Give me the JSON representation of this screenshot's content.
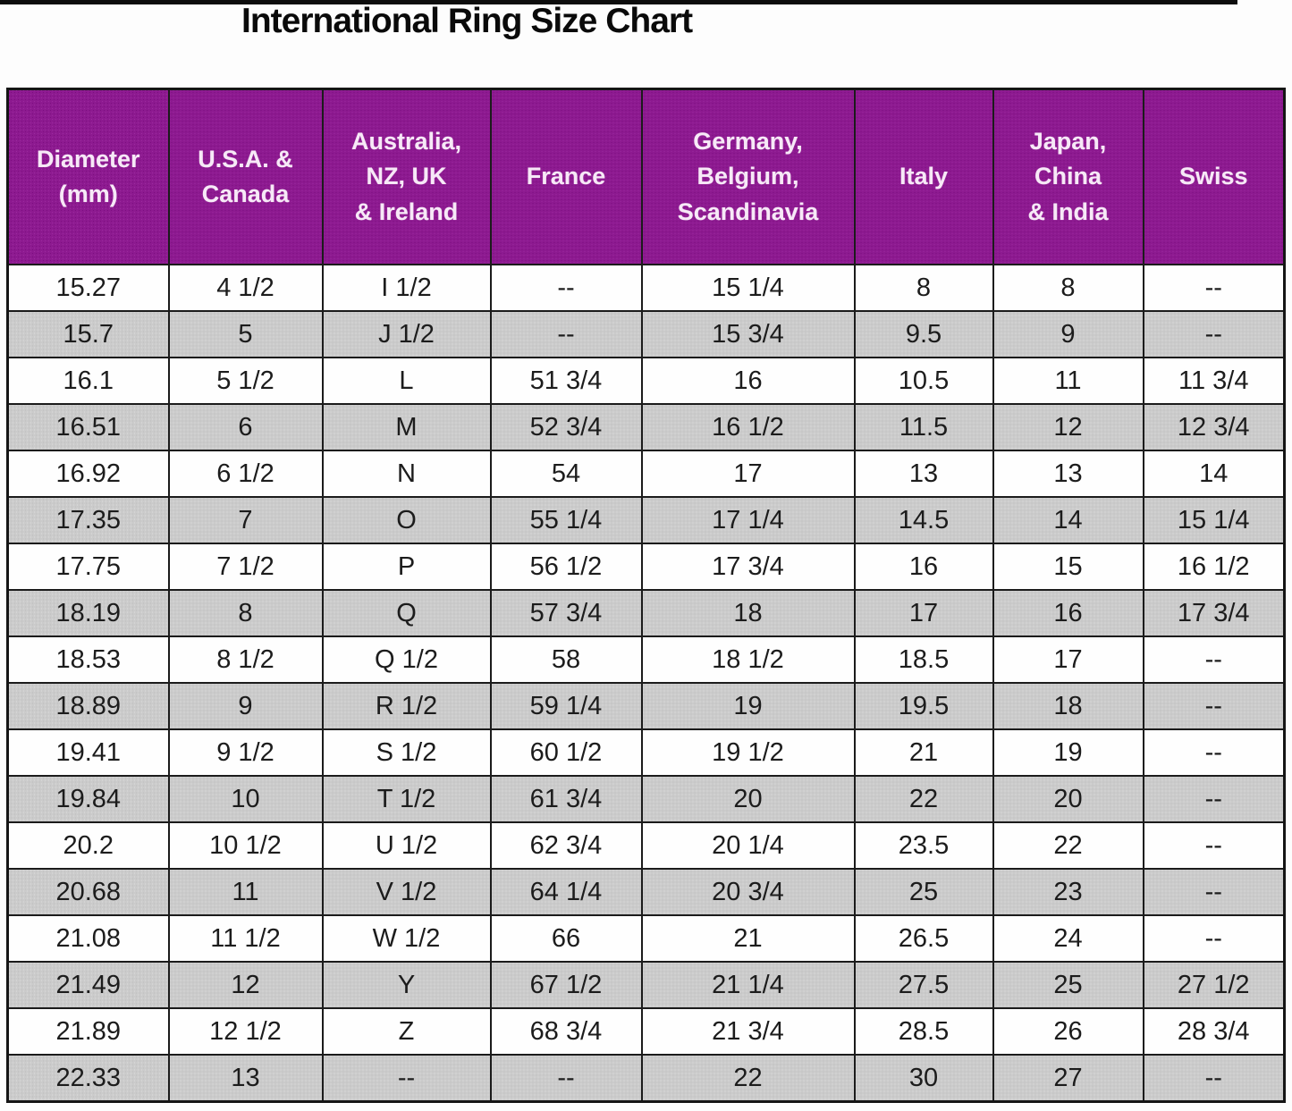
{
  "title": "International Ring Size Chart",
  "colors": {
    "header_bg": "#8d1a90",
    "header_text": "#f7e9f7",
    "alt_row_bg": "#cbcbcb",
    "row_bg": "#fefefe",
    "border": "#1b1b1b",
    "title_text": "#0a0a0a"
  },
  "table": {
    "headers": [
      "Diameter\n(mm)",
      "U.S.A. &\nCanada",
      "Australia,\nNZ, UK\n& Ireland",
      "France",
      "Germany,\nBelgium,\nScandinavia",
      "Italy",
      "Japan,\nChina\n& India",
      "Swiss"
    ]
  },
  "chart_data": {
    "type": "table",
    "title": "International Ring Size Chart",
    "columns": [
      "Diameter (mm)",
      "U.S.A. & Canada",
      "Australia, NZ, UK & Ireland",
      "France",
      "Germany, Belgium, Scandinavia",
      "Italy",
      "Japan, China & India",
      "Swiss"
    ],
    "rows": [
      [
        "15.27",
        "4 1/2",
        "I 1/2",
        "--",
        "15 1/4",
        "8",
        "8",
        "--"
      ],
      [
        "15.7",
        "5",
        "J 1/2",
        "--",
        "15 3/4",
        "9.5",
        "9",
        "--"
      ],
      [
        "16.1",
        "5 1/2",
        "L",
        "51 3/4",
        "16",
        "10.5",
        "11",
        "11 3/4"
      ],
      [
        "16.51",
        "6",
        "M",
        "52 3/4",
        "16 1/2",
        "11.5",
        "12",
        "12 3/4"
      ],
      [
        "16.92",
        "6 1/2",
        "N",
        "54",
        "17",
        "13",
        "13",
        "14"
      ],
      [
        "17.35",
        "7",
        "O",
        "55 1/4",
        "17 1/4",
        "14.5",
        "14",
        "15 1/4"
      ],
      [
        "17.75",
        "7 1/2",
        "P",
        "56 1/2",
        "17 3/4",
        "16",
        "15",
        "16 1/2"
      ],
      [
        "18.19",
        "8",
        "Q",
        "57 3/4",
        "18",
        "17",
        "16",
        "17 3/4"
      ],
      [
        "18.53",
        "8 1/2",
        "Q 1/2",
        "58",
        "18 1/2",
        "18.5",
        "17",
        "--"
      ],
      [
        "18.89",
        "9",
        "R 1/2",
        "59 1/4",
        "19",
        "19.5",
        "18",
        "--"
      ],
      [
        "19.41",
        "9 1/2",
        "S 1/2",
        "60 1/2",
        "19 1/2",
        "21",
        "19",
        "--"
      ],
      [
        "19.84",
        "10",
        "T 1/2",
        "61 3/4",
        "20",
        "22",
        "20",
        "--"
      ],
      [
        "20.2",
        "10 1/2",
        "U 1/2",
        "62 3/4",
        "20 1/4",
        "23.5",
        "22",
        "--"
      ],
      [
        "20.68",
        "11",
        "V 1/2",
        "64 1/4",
        "20 3/4",
        "25",
        "23",
        "--"
      ],
      [
        "21.08",
        "11 1/2",
        "W 1/2",
        "66",
        "21",
        "26.5",
        "24",
        "--"
      ],
      [
        "21.49",
        "12",
        "Y",
        "67 1/2",
        "21 1/4",
        "27.5",
        "25",
        "27 1/2"
      ],
      [
        "21.89",
        "12 1/2",
        "Z",
        "68 3/4",
        "21 3/4",
        "28.5",
        "26",
        "28 3/4"
      ],
      [
        "22.33",
        "13",
        "--",
        "--",
        "22",
        "30",
        "27",
        "--"
      ]
    ]
  }
}
